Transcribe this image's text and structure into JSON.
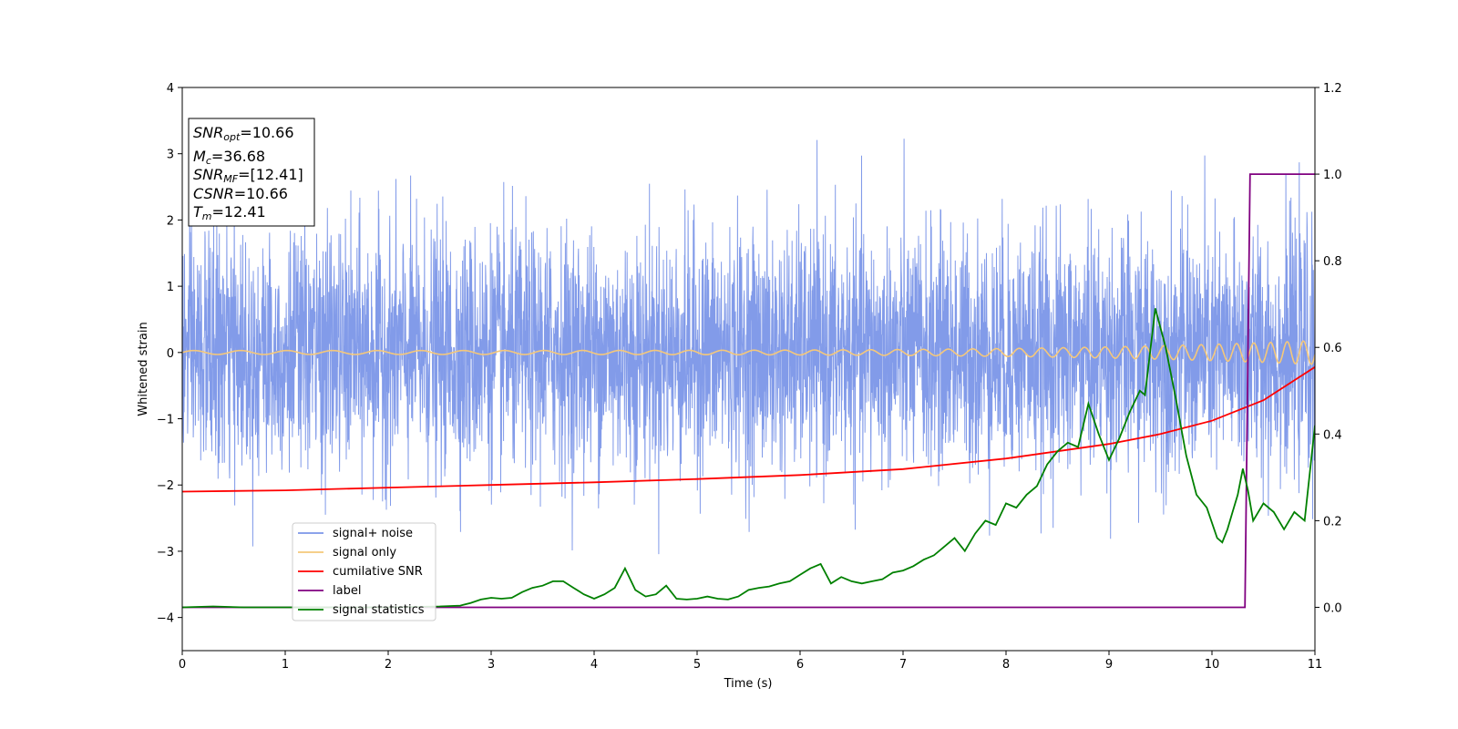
{
  "chart_data": {
    "type": "line",
    "xlabel": "Time (s)",
    "ylabel": "Whitened strain",
    "xlim": [
      0,
      11
    ],
    "ylim": [
      -4.5,
      4
    ],
    "y2lim": [
      -0.1,
      1.2
    ],
    "xticks": [
      "0",
      "1",
      "2",
      "3",
      "4",
      "5",
      "6",
      "7",
      "8",
      "9",
      "10",
      "11"
    ],
    "yticks": [
      "4",
      "3",
      "2",
      "1",
      "0",
      "−1",
      "−2",
      "−3",
      "−4"
    ],
    "y2ticks": [
      "1.2",
      "1.0",
      "0.8",
      "0.6",
      "0.4",
      "0.2",
      "0.0"
    ],
    "legend_position": "lower-left",
    "info_box": {
      "snr_opt": {
        "base": "SNR",
        "sub": "opt",
        "value": "=10.66"
      },
      "mc": {
        "base": "M",
        "sub": "c",
        "value": "=36.68"
      },
      "snr_mf": {
        "base": "SNR",
        "sub": "MF",
        "value": "=[12.41]"
      },
      "csnr": {
        "base": "CSNR",
        "value": "=10.66"
      },
      "tm": {
        "base": "T",
        "sub": "m",
        "value": "=12.41"
      }
    },
    "series": [
      {
        "name": "signal+ noise",
        "color": "#7b96e8",
        "axis": "left",
        "kind": "noise",
        "typical_amplitude": 0.9,
        "peak_amplitude": 3.6
      },
      {
        "name": "signal only",
        "color": "#f5c87a",
        "axis": "left",
        "kind": "chirp",
        "start_amplitude": 0.03,
        "end_amplitude": 0.18,
        "start_frequency_hz": 2.2,
        "end_frequency_hz": 6.5
      },
      {
        "name": "cumilative SNR",
        "color": "#ff0000",
        "axis": "left",
        "x": [
          0,
          1,
          2,
          3,
          4,
          5,
          6,
          7,
          8,
          9,
          9.5,
          10,
          10.5,
          11
        ],
        "y": [
          -2.1,
          -2.08,
          -2.04,
          -2.0,
          -1.96,
          -1.91,
          -1.85,
          -1.76,
          -1.6,
          -1.38,
          -1.23,
          -1.03,
          -0.72,
          -0.22
        ]
      },
      {
        "name": "label",
        "color": "#800080",
        "axis": "right",
        "x": [
          0,
          10.32,
          10.37,
          11
        ],
        "y": [
          0,
          0,
          1,
          1
        ]
      },
      {
        "name": "signal statistics",
        "color": "#008000",
        "axis": "right",
        "x": [
          0,
          0.3,
          0.6,
          1.0,
          1.5,
          2.0,
          2.5,
          2.7,
          2.8,
          2.9,
          3.0,
          3.1,
          3.2,
          3.3,
          3.4,
          3.5,
          3.6,
          3.7,
          3.8,
          3.9,
          4.0,
          4.1,
          4.2,
          4.3,
          4.4,
          4.5,
          4.6,
          4.7,
          4.8,
          4.9,
          5.0,
          5.1,
          5.2,
          5.3,
          5.4,
          5.5,
          5.6,
          5.7,
          5.8,
          5.9,
          6.0,
          6.1,
          6.2,
          6.3,
          6.4,
          6.5,
          6.6,
          6.7,
          6.8,
          6.9,
          7.0,
          7.1,
          7.2,
          7.3,
          7.4,
          7.5,
          7.6,
          7.7,
          7.8,
          7.9,
          8.0,
          8.1,
          8.2,
          8.3,
          8.4,
          8.5,
          8.6,
          8.7,
          8.8,
          8.9,
          9.0,
          9.1,
          9.2,
          9.3,
          9.35,
          9.45,
          9.55,
          9.65,
          9.75,
          9.85,
          9.95,
          10.05,
          10.1,
          10.15,
          10.2,
          10.25,
          10.3,
          10.35,
          10.4,
          10.5,
          10.6,
          10.7,
          10.8,
          10.9,
          11.0
        ],
        "y": [
          0.0,
          0.002,
          0.0,
          0.0,
          0.0,
          0.0,
          0.002,
          0.004,
          0.01,
          0.018,
          0.022,
          0.02,
          0.022,
          0.035,
          0.045,
          0.05,
          0.06,
          0.06,
          0.045,
          0.03,
          0.02,
          0.03,
          0.045,
          0.09,
          0.04,
          0.025,
          0.03,
          0.05,
          0.02,
          0.018,
          0.02,
          0.025,
          0.02,
          0.018,
          0.025,
          0.04,
          0.045,
          0.048,
          0.055,
          0.06,
          0.075,
          0.09,
          0.1,
          0.055,
          0.07,
          0.06,
          0.055,
          0.06,
          0.065,
          0.08,
          0.085,
          0.095,
          0.11,
          0.12,
          0.14,
          0.16,
          0.13,
          0.17,
          0.2,
          0.19,
          0.24,
          0.23,
          0.26,
          0.28,
          0.33,
          0.36,
          0.38,
          0.37,
          0.47,
          0.4,
          0.34,
          0.39,
          0.45,
          0.5,
          0.49,
          0.69,
          0.6,
          0.48,
          0.35,
          0.26,
          0.23,
          0.16,
          0.15,
          0.18,
          0.22,
          0.26,
          0.32,
          0.27,
          0.2,
          0.24,
          0.22,
          0.18,
          0.22,
          0.2,
          0.42
        ]
      }
    ]
  }
}
